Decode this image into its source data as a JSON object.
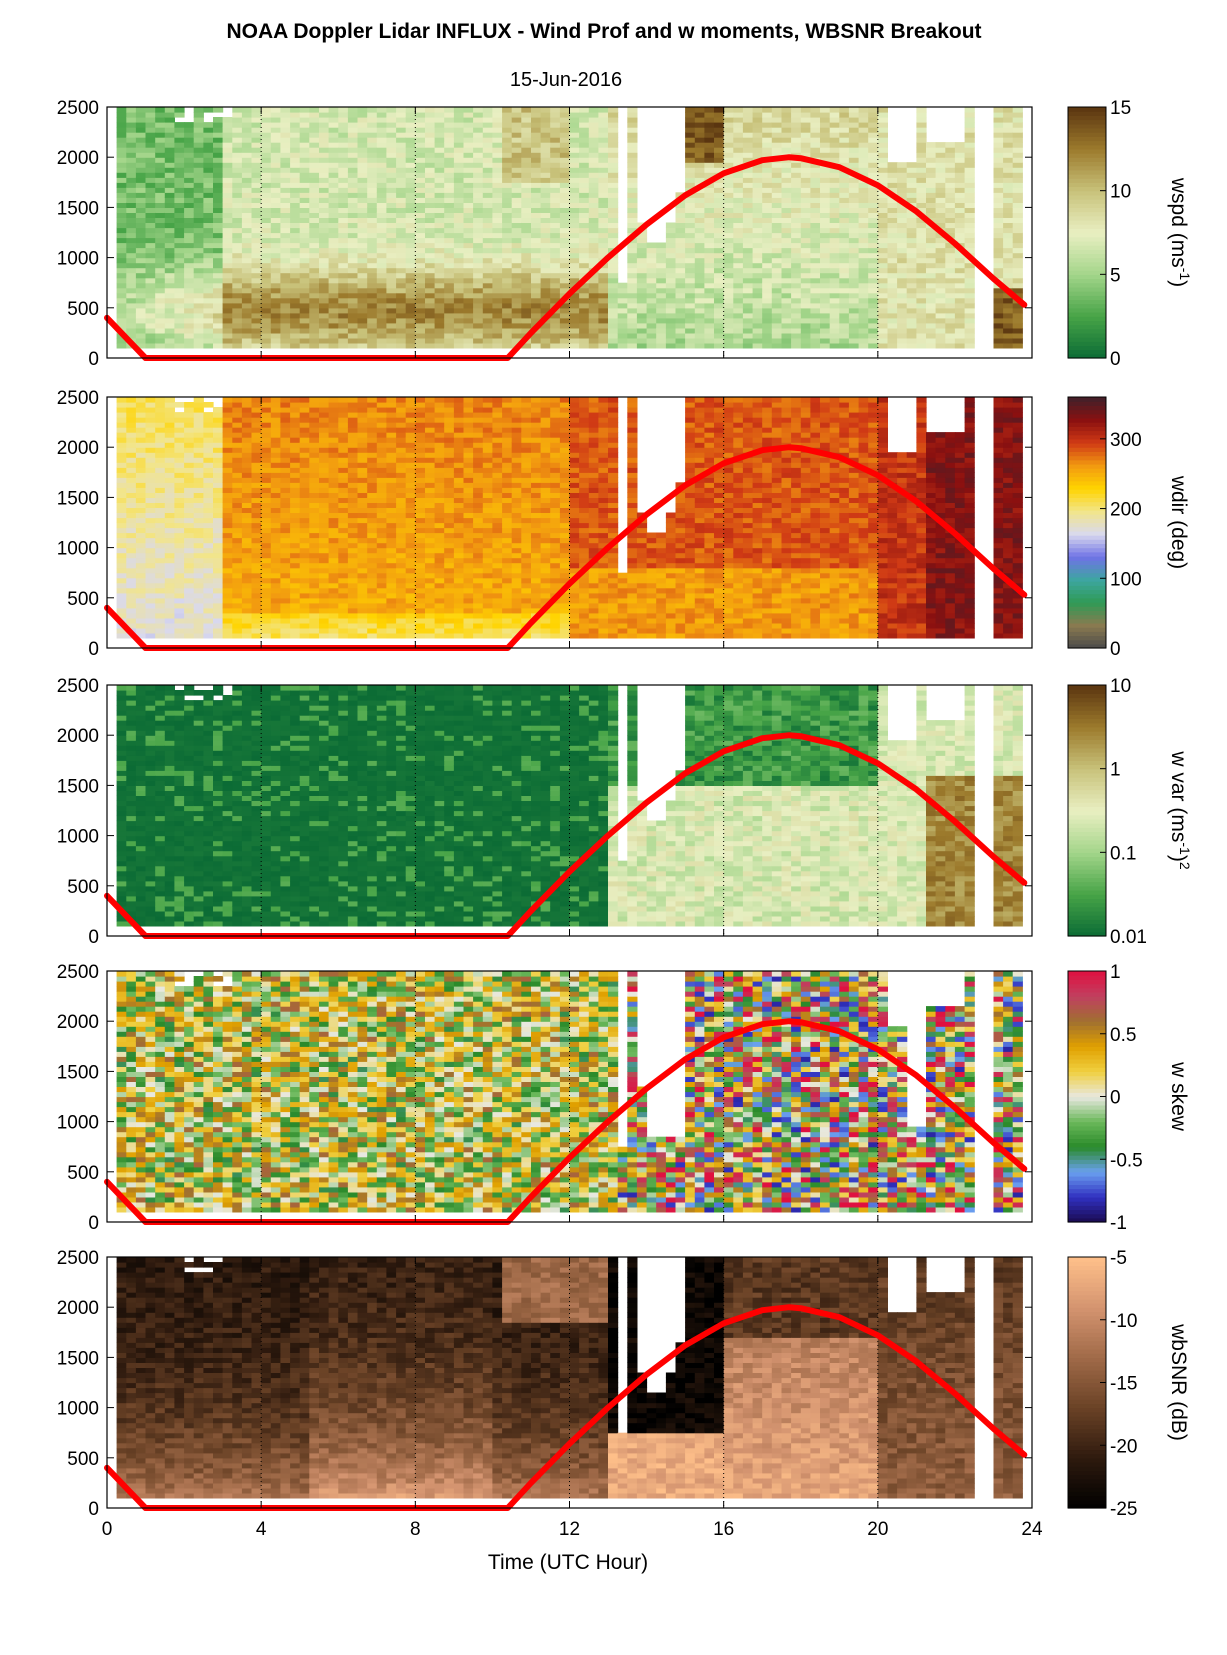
{
  "title": "NOAA Doppler Lidar INFLUX - Wind Prof and w moments, WBSNR Breakout",
  "subtitle": "15-Jun-2016",
  "x_axis": {
    "label": "Time (UTC Hour)",
    "range": [
      0,
      24
    ],
    "ticks": [
      "0",
      "4",
      "8",
      "12",
      "16",
      "20",
      "24"
    ]
  },
  "chart_data": [
    {
      "type": "heatmap",
      "name": "wspd",
      "colorbar_label": "wspd (ms",
      "colorbar_label_sup": "-1",
      "colorbar_label_end": ")",
      "colorbar_range": [
        0,
        15
      ],
      "colorbar_ticks": [
        "15",
        "10",
        "5",
        "0"
      ],
      "colormap": [
        "#0b6b35",
        "#47a447",
        "#a3d58a",
        "#e9efc2",
        "#c8c27a",
        "#9c7a2c",
        "#5a3510"
      ],
      "xlim": [
        0,
        24
      ],
      "ylim": [
        0,
        2500
      ],
      "yticks": [
        "2500",
        "2000",
        "1500",
        "1000",
        "500",
        "0"
      ]
    },
    {
      "type": "heatmap",
      "name": "wdir",
      "colorbar_label": "wdir (deg)",
      "colorbar_range": [
        0,
        360
      ],
      "colorbar_ticks": [
        "300",
        "200",
        "100",
        "0"
      ],
      "colormap": [
        "#4a4a4a",
        "#8a7a50",
        "#2f9a55",
        "#3da6a0",
        "#6f72e6",
        "#d9d9ee",
        "#f2e58a",
        "#ffd400",
        "#f29a10",
        "#d03a15",
        "#8a1010",
        "#40202a"
      ],
      "xlim": [
        0,
        24
      ],
      "ylim": [
        0,
        2500
      ],
      "yticks": [
        "2500",
        "2000",
        "1500",
        "1000",
        "500",
        "0"
      ]
    },
    {
      "type": "heatmap",
      "name": "w var",
      "colorbar_label": "w var (ms",
      "colorbar_label_sup": "-1",
      "colorbar_label_end": ")",
      "colorbar_label_sup2": "2",
      "colorbar_range": [
        0.01,
        10
      ],
      "colorbar_scale": "log",
      "colorbar_ticks": [
        "10",
        "1",
        "0.1",
        "0.01"
      ],
      "colormap": [
        "#0b6b35",
        "#47a447",
        "#a3d58a",
        "#e9efc2",
        "#c8c27a",
        "#9c7a2c",
        "#5a3510"
      ],
      "xlim": [
        0,
        24
      ],
      "ylim": [
        0,
        2500
      ],
      "yticks": [
        "2500",
        "2000",
        "1500",
        "1000",
        "500",
        "0"
      ]
    },
    {
      "type": "heatmap",
      "name": "w skew",
      "colorbar_label": "w skew",
      "colorbar_range": [
        -1,
        1
      ],
      "colorbar_ticks": [
        "1",
        "0.5",
        "0",
        "-0.5",
        "-1"
      ],
      "colormap": [
        "#1a0a50",
        "#3030c0",
        "#6aa0f0",
        "#2a8a2a",
        "#6ab85a",
        "#e8e8e0",
        "#f0d040",
        "#e0a000",
        "#a07030",
        "#c04060",
        "#e01040"
      ],
      "xlim": [
        0,
        24
      ],
      "ylim": [
        0,
        2500
      ],
      "yticks": [
        "2500",
        "2000",
        "1500",
        "1000",
        "500",
        "0"
      ]
    },
    {
      "type": "heatmap",
      "name": "wbSNR",
      "colorbar_label": "wbSNR (dB)",
      "colorbar_range": [
        -25,
        -5
      ],
      "colorbar_ticks": [
        "-5",
        "-10",
        "-15",
        "-20",
        "-25"
      ],
      "colormap": [
        "#000000",
        "#2e1a0e",
        "#6a4226",
        "#a06a48",
        "#d49470",
        "#ffc08a"
      ],
      "xlim": [
        0,
        24
      ],
      "ylim": [
        0,
        2500
      ],
      "yticks": [
        "2500",
        "2000",
        "1500",
        "1000",
        "500",
        "0"
      ]
    }
  ],
  "overlay_line": {
    "color": "#ff0000",
    "description_values": {
      "x": [
        0,
        1,
        10.4,
        11,
        12,
        13,
        14,
        15,
        16,
        17,
        17.7,
        18,
        19,
        20,
        21,
        22,
        23,
        23.8
      ],
      "y": [
        400,
        0,
        0,
        250,
        640,
        1000,
        1330,
        1620,
        1840,
        1970,
        2000,
        1990,
        1900,
        1720,
        1460,
        1140,
        790,
        530
      ]
    }
  },
  "vertical_gridlines_x": [
    4,
    8,
    12,
    16,
    20
  ]
}
